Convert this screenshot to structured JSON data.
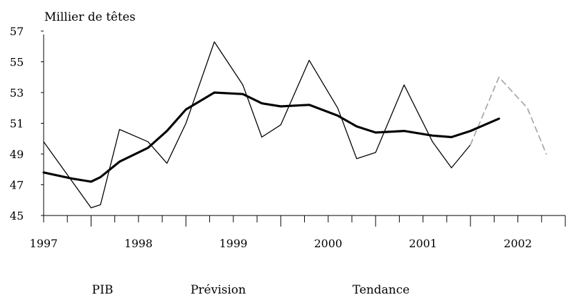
{
  "chart_data": {
    "type": "line",
    "title": "",
    "ylabel": "Millier de têtes",
    "xlabel": "",
    "ylim": [
      45,
      57
    ],
    "yticks": [
      45,
      47,
      49,
      51,
      53,
      55,
      57
    ],
    "x_start": 1996.5,
    "x_end": 2002.0,
    "year_ticks": [
      "1997",
      "1998",
      "1999",
      "2000",
      "2001",
      "2002"
    ],
    "series": [
      {
        "name": "PIB",
        "color": "#000000",
        "style": "solid-thin",
        "points": [
          [
            1996.5,
            49.8
          ],
          [
            1997.0,
            45.5
          ],
          [
            1997.1,
            45.7
          ],
          [
            1997.3,
            50.6
          ],
          [
            1997.6,
            49.8
          ],
          [
            1997.8,
            48.4
          ],
          [
            1998.0,
            51.0
          ],
          [
            1998.3,
            56.3
          ],
          [
            1998.6,
            53.5
          ],
          [
            1998.8,
            50.1
          ],
          [
            1999.0,
            50.9
          ],
          [
            1999.3,
            55.1
          ],
          [
            1999.6,
            52.0
          ],
          [
            1999.8,
            48.7
          ],
          [
            2000.0,
            49.1
          ],
          [
            2000.3,
            53.5
          ],
          [
            2000.6,
            49.8
          ],
          [
            2000.8,
            48.1
          ],
          [
            2001.0,
            49.6
          ]
        ]
      },
      {
        "name": "Prévision",
        "color": "#aaaaaa",
        "style": "dashed",
        "points": [
          [
            2001.0,
            49.6
          ],
          [
            2001.3,
            54.0
          ],
          [
            2001.6,
            52.0
          ],
          [
            2001.8,
            49.0
          ]
        ]
      },
      {
        "name": "Tendance",
        "color": "#000000",
        "style": "solid-thick",
        "points": [
          [
            1996.5,
            47.8
          ],
          [
            1996.8,
            47.4
          ],
          [
            1997.0,
            47.2
          ],
          [
            1997.1,
            47.5
          ],
          [
            1997.3,
            48.5
          ],
          [
            1997.6,
            49.4
          ],
          [
            1997.8,
            50.5
          ],
          [
            1998.0,
            51.9
          ],
          [
            1998.3,
            53.0
          ],
          [
            1998.6,
            52.9
          ],
          [
            1998.8,
            52.3
          ],
          [
            1999.0,
            52.1
          ],
          [
            1999.3,
            52.2
          ],
          [
            1999.6,
            51.5
          ],
          [
            1999.8,
            50.8
          ],
          [
            2000.0,
            50.4
          ],
          [
            2000.3,
            50.5
          ],
          [
            2000.6,
            50.2
          ],
          [
            2000.8,
            50.1
          ],
          [
            2001.0,
            50.5
          ],
          [
            2001.3,
            51.3
          ]
        ]
      }
    ],
    "legend": {
      "position": "bottom",
      "entries": [
        "PIB",
        "Prévision",
        "Tendance"
      ]
    }
  }
}
